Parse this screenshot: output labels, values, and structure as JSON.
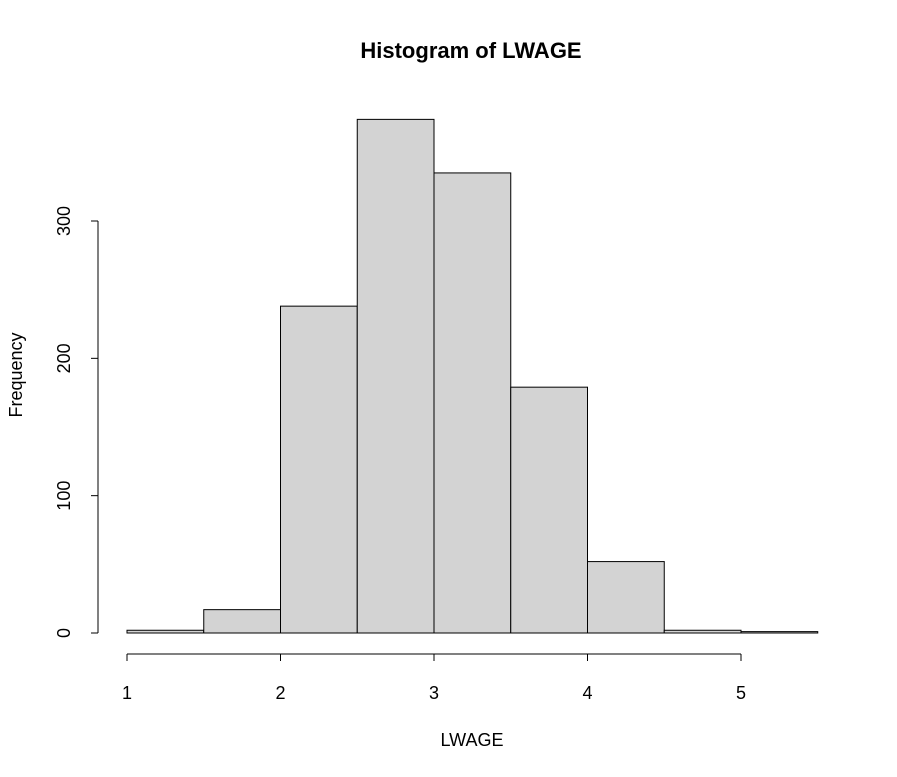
{
  "chart_data": {
    "type": "bar",
    "title": "Histogram of LWAGE",
    "xlabel": "LWAGE",
    "ylabel": "Frequency",
    "bins": [
      {
        "from": 1.0,
        "to": 1.5,
        "count": 2
      },
      {
        "from": 1.5,
        "to": 2.0,
        "count": 17
      },
      {
        "from": 2.0,
        "to": 2.5,
        "count": 238
      },
      {
        "from": 2.5,
        "to": 3.0,
        "count": 374
      },
      {
        "from": 3.0,
        "to": 3.5,
        "count": 335
      },
      {
        "from": 3.5,
        "to": 4.0,
        "count": 179
      },
      {
        "from": 4.0,
        "to": 4.5,
        "count": 52
      },
      {
        "from": 4.5,
        "to": 5.0,
        "count": 2
      },
      {
        "from": 5.0,
        "to": 5.5,
        "count": 1
      }
    ],
    "xlim": [
      1,
      5.5
    ],
    "ylim": [
      0,
      374
    ],
    "x_ticks": [
      1,
      2,
      3,
      4,
      5
    ],
    "y_ticks": [
      0,
      100,
      200,
      300
    ],
    "grid": false,
    "colors": {
      "bar_fill": "#d3d3d3",
      "bar_stroke": "#000000"
    }
  }
}
